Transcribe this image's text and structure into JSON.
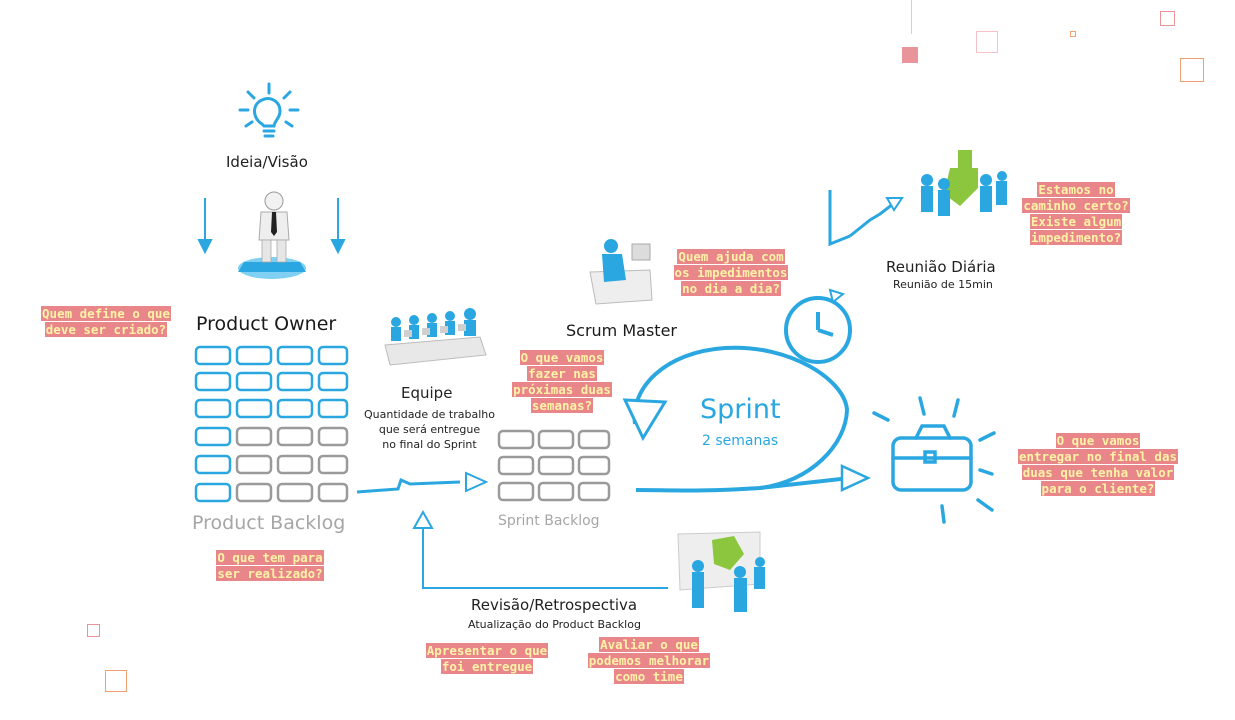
{
  "labels": {
    "ideia": "Ideia/Visão",
    "product_owner": "Product Owner",
    "product_backlog": "Product Backlog",
    "equipe": "Equipe",
    "equipe_desc_1": "Quantidade de trabalho",
    "equipe_desc_2": "que será entregue",
    "equipe_desc_3": "no final do Sprint",
    "sprint_backlog": "Sprint Backlog",
    "scrum_master": "Scrum Master",
    "sprint": "Sprint",
    "sprint_duration": "2 semanas",
    "reuniao": "Reunião Diária",
    "reuniao_desc": "Reunião de 15min",
    "revisao": "Revisão/Retrospectiva",
    "revisao_desc": "Atualização do Product Backlog"
  },
  "notes": {
    "po_1": "Quem define o que",
    "po_2": "deve ser criado?",
    "pb_1": "O que tem para",
    "pb_2": "ser realizado?",
    "sprint_1": "O que vamos",
    "sprint_2": "fazer nas",
    "sprint_3": "próximas duas",
    "sprint_4": "semanas?",
    "sm_1": "Quem ajuda com",
    "sm_2": "os impedimentos",
    "sm_3": "no dia a dia?",
    "daily_1": "Estamos no",
    "daily_2": "caminho certo?",
    "daily_3": "Existe algum",
    "daily_4": "impedimento?",
    "deliver_1": "O que vamos",
    "deliver_2": "entregar no final das",
    "deliver_3": "duas que tenha valor",
    "deliver_4": "para o cliente?",
    "present_1": "Apresentar o que",
    "present_2": "foi entregue",
    "improve_1": "Avaliar o que",
    "improve_2": "podemos melhorar",
    "improve_3": "como time"
  },
  "colors": {
    "primary_blue": "#2aa7e0",
    "light_blue": "#7fd0f2",
    "grey": "#9a9a9a",
    "green": "#8cc63f",
    "note_bg": "#e8868a",
    "note_text": "#fff3a6",
    "deco_pink": "#e8868a",
    "deco_orange": "#f0a070"
  }
}
